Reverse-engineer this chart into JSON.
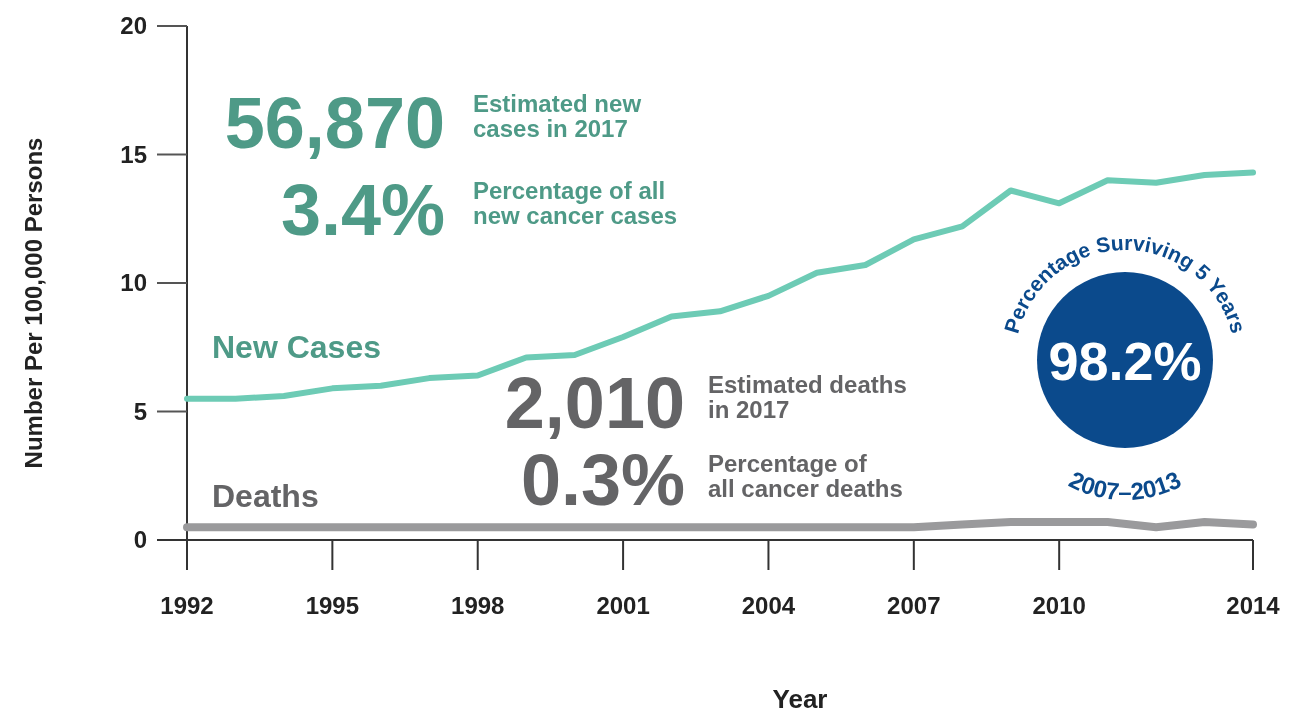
{
  "chart_data": {
    "type": "line",
    "xlabel": "Year",
    "ylabel": "Number Per 100,000 Persons",
    "x": [
      1992,
      1993,
      1994,
      1995,
      1996,
      1997,
      1998,
      1999,
      2000,
      2001,
      2002,
      2003,
      2004,
      2005,
      2006,
      2007,
      2008,
      2009,
      2010,
      2011,
      2012,
      2013,
      2014
    ],
    "series": [
      {
        "name": "New Cases",
        "color": "#6dcbb5",
        "values": [
          5.5,
          5.5,
          5.6,
          5.9,
          6.0,
          6.3,
          6.4,
          7.1,
          7.2,
          7.9,
          8.7,
          8.9,
          9.5,
          10.4,
          10.7,
          11.7,
          12.2,
          13.6,
          13.1,
          14.0,
          13.9,
          14.2,
          14.3
        ]
      },
      {
        "name": "Deaths",
        "color": "#9a9a9c",
        "values": [
          0.5,
          0.5,
          0.5,
          0.5,
          0.5,
          0.5,
          0.5,
          0.5,
          0.5,
          0.5,
          0.5,
          0.5,
          0.5,
          0.5,
          0.5,
          0.5,
          0.6,
          0.7,
          0.7,
          0.7,
          0.5,
          0.7,
          0.6
        ]
      }
    ],
    "xlim": [
      1992,
      2014
    ],
    "xticks": [
      1992,
      1995,
      1998,
      2001,
      2004,
      2007,
      2010,
      2014
    ],
    "ylim": [
      0,
      20
    ],
    "yticks": [
      0,
      5,
      10,
      15,
      20
    ],
    "grid": false,
    "legend": false,
    "marker": "none",
    "line_style": "solid",
    "annotations": [
      "56,870",
      "Estimated new\ncases in 2017",
      "3.4%",
      "Percentage of all\nnew cancer cases",
      "2,010",
      "Estimated deaths\nin 2017",
      "0.3%",
      "Percentage of\nall cancer deaths",
      "Percentage Surviving 5 Years",
      "98.2%",
      "2007–2013"
    ]
  }
}
